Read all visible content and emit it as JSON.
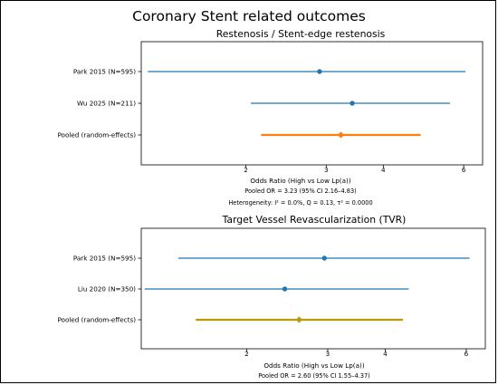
{
  "suptitle": "Coronary Stent related outcomes",
  "chart_data": [
    {
      "type": "forest",
      "title": "Restenosis / Stent-edge restenosis",
      "xlabel": "Odds Ratio (High vs Low Lp(a))",
      "xscale": "log",
      "xlim": [
        1.18,
        6.6
      ],
      "xticks": [
        2,
        3,
        4,
        6
      ],
      "xtick_labels": [
        "2",
        "3",
        "4",
        "6"
      ],
      "rows": [
        {
          "label": "Park 2015 (N=595)",
          "or": 2.9,
          "lo": 1.22,
          "hi": 6.05,
          "color": "#1f77b4",
          "marker": "circle"
        },
        {
          "label": "Wu 2025 (N=211)",
          "or": 3.42,
          "lo": 2.05,
          "hi": 5.6,
          "color": "#1f77b4",
          "marker": "circle"
        },
        {
          "label": "Pooled (random-effects)",
          "or": 3.23,
          "lo": 2.16,
          "hi": 4.83,
          "color": "#ff7f0e",
          "marker": "diamond"
        }
      ],
      "notes": [
        "Pooled OR = 3.23 (95% CI 2.16–4.83)",
        "Heterogeneity: I² = 0.0%, Q = 0.13, τ² = 0.0000"
      ]
    },
    {
      "type": "forest",
      "title": "Target Vessel Revascularization (TVR)",
      "xlabel": "Odds Ratio (High vs Low Lp(a))",
      "xscale": "log",
      "xlim": [
        1.18,
        6.6
      ],
      "xticks": [
        2,
        3,
        4,
        6
      ],
      "xtick_labels": [
        "2",
        "3",
        "4",
        "6"
      ],
      "rows": [
        {
          "label": "Park 2015 (N=595)",
          "or": 2.95,
          "lo": 1.42,
          "hi": 6.1,
          "color": "#1f77b4",
          "marker": "circle"
        },
        {
          "label": "Liu 2020 (N=350)",
          "or": 2.42,
          "lo": 1.2,
          "hi": 4.5,
          "color": "#1f77b4",
          "marker": "circle"
        },
        {
          "label": "Pooled (random-effects)",
          "or": 2.6,
          "lo": 1.55,
          "hi": 4.37,
          "color": "#bc9a0a",
          "marker": "diamond"
        }
      ],
      "notes": [
        "Pooled OR = 2.60 (95% CI 1.55–4.37)"
      ]
    }
  ]
}
